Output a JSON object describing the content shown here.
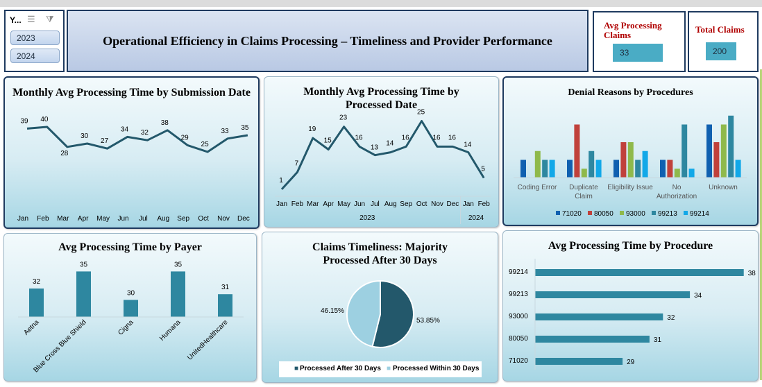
{
  "slicer": {
    "title": "Y...",
    "items": [
      "2023",
      "2024"
    ],
    "multiselect_icon": "multiselect-icon",
    "clear_filter_icon": "clear-filter-icon"
  },
  "dashboard_title": "Operational Efficiency in Claims Processing – Timeliness and Provider Performance",
  "kpis": {
    "avg_processing_label": "Avg Processing Claims",
    "avg_processing_value": "33",
    "total_claims_label": "Total Claims",
    "total_claims_value": "200"
  },
  "colors": {
    "line": "#23586b",
    "bar": "#2e87a0",
    "kpi_fill": "#4aacc5",
    "kpi_label": "#b00000",
    "pie_after": "#23586b",
    "pie_within": "#9dd0e1",
    "series": [
      "#1060b0",
      "#c0413b",
      "#8fb94b",
      "#2e87a0",
      "#12a8e8"
    ]
  },
  "chart_data": [
    {
      "type": "line",
      "title": "Monthly Avg Processing Time by Submission Date",
      "categories": [
        "Jan",
        "Feb",
        "Mar",
        "Apr",
        "May",
        "Jun",
        "Jul",
        "Aug",
        "Sep",
        "Oct",
        "Nov",
        "Dec"
      ],
      "values": [
        39,
        40,
        28,
        30,
        27,
        34,
        32,
        38,
        29,
        25,
        33,
        35
      ],
      "ylim": [
        0,
        45
      ],
      "grid": false
    },
    {
      "type": "line",
      "title": "Monthly Avg Processing Time by Processed Date",
      "categories": [
        "Jan",
        "Feb",
        "Mar",
        "Apr",
        "May",
        "Jun",
        "Jul",
        "Aug",
        "Sep",
        "Oct",
        "Nov",
        "Dec",
        "Jan",
        "Feb"
      ],
      "groups": [
        "2023",
        "2024"
      ],
      "values": [
        1,
        7,
        19,
        15,
        23,
        16,
        13,
        14,
        16,
        25,
        16,
        16,
        14,
        5
      ],
      "ylim": [
        0,
        30
      ],
      "grid": false
    },
    {
      "type": "bar",
      "title": "Denial Reasons by Procedures",
      "categories": [
        "Coding Error",
        "Duplicate Claim",
        "Eligibility Issue",
        "No Authorization",
        "Unknown"
      ],
      "series": [
        {
          "name": "71020",
          "values": [
            1,
            1,
            1,
            1,
            3
          ]
        },
        {
          "name": "80050",
          "values": [
            0,
            3,
            2,
            1,
            2
          ]
        },
        {
          "name": "93000",
          "values": [
            1.5,
            0.5,
            2,
            0.5,
            3
          ]
        },
        {
          "name": "99213",
          "values": [
            1,
            1.5,
            1,
            3,
            3.5
          ]
        },
        {
          "name": "99214",
          "values": [
            1,
            1,
            1.5,
            0.5,
            1
          ]
        }
      ],
      "ylim": [
        0,
        4
      ],
      "legend": "bottom"
    },
    {
      "type": "bar",
      "title": "Avg Processing Time by Payer",
      "categories": [
        "Aetna",
        "Blue Cross Blue Shield",
        "Cigna",
        "Humana",
        "UnitedHealthcare"
      ],
      "values": [
        32,
        35,
        30,
        35,
        31
      ]
    },
    {
      "type": "pie",
      "title": "Claims Timeliness: Majority Processed After 30 Days",
      "labels": [
        "Processed After 30 Days",
        "Processed Within 30 Days"
      ],
      "values": [
        53.85,
        46.15
      ],
      "value_labels": [
        "53.85%",
        "46.15%"
      ],
      "legend": "bottom"
    },
    {
      "type": "bar",
      "orientation": "horizontal",
      "title": "Avg Processing Time by Procedure",
      "categories": [
        "99214",
        "99213",
        "93000",
        "80050",
        "71020"
      ],
      "values": [
        38,
        34,
        32,
        31,
        29
      ]
    }
  ]
}
